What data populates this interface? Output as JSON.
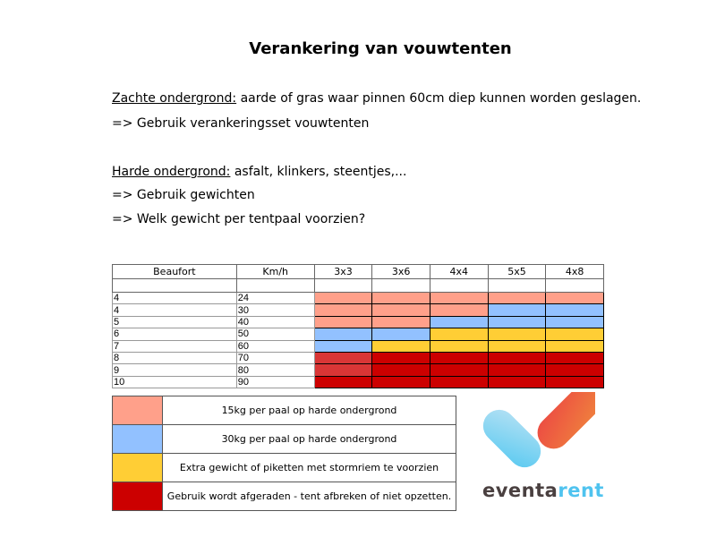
{
  "title": "Verankering van vouwtenten",
  "soft": {
    "label": "Zachte ondergrond:",
    "text": " aarde of gras waar pinnen 60cm diep kunnen worden geslagen.",
    "advice": "=> Gebruik verankeringsset vouwtenten"
  },
  "hard": {
    "label": "Harde ondergrond:",
    "text": " asfalt, klinkers, steentjes,...",
    "advice1": "=> Gebruik gewichten",
    "advice2": "=> Welk gewicht per tentpaal voorzien?"
  },
  "colors": {
    "p": "#ffa08a",
    "b": "#92c1ff",
    "y": "#ffce35",
    "r": "#cc0000",
    "d": "#d93636"
  },
  "table": {
    "headers": [
      "Beaufort",
      "Km/h",
      "3x3",
      "3x6",
      "4x4",
      "5x5",
      "4x8"
    ],
    "rows": [
      {
        "beaufort": "4",
        "kmh": "24",
        "cells": [
          "p",
          "p",
          "p",
          "p",
          "p"
        ]
      },
      {
        "beaufort": "4",
        "kmh": "30",
        "cells": [
          "p",
          "p",
          "p",
          "b",
          "b"
        ]
      },
      {
        "beaufort": "5",
        "kmh": "40",
        "cells": [
          "p",
          "p",
          "b",
          "b",
          "b"
        ]
      },
      {
        "beaufort": "6",
        "kmh": "50",
        "cells": [
          "b",
          "b",
          "y",
          "y",
          "y"
        ]
      },
      {
        "beaufort": "7",
        "kmh": "60",
        "cells": [
          "b",
          "y",
          "y",
          "y",
          "y"
        ]
      },
      {
        "beaufort": "8",
        "kmh": "70",
        "cells": [
          "d",
          "r",
          "r",
          "r",
          "r"
        ]
      },
      {
        "beaufort": "9",
        "kmh": "80",
        "cells": [
          "d",
          "r",
          "r",
          "r",
          "r"
        ]
      },
      {
        "beaufort": "10",
        "kmh": "90",
        "cells": [
          "r",
          "r",
          "r",
          "r",
          "r"
        ]
      }
    ]
  },
  "legend": [
    {
      "color": "p",
      "text": "15kg per paal op harde ondergrond"
    },
    {
      "color": "b",
      "text": "30kg per paal op harde ondergrond"
    },
    {
      "color": "y",
      "text": "Extra gewicht of piketten met stormriem te voorzien"
    },
    {
      "color": "r",
      "text": "Gebruik wordt afgeraden - tent afbreken of niet opzetten."
    }
  ],
  "logo": {
    "part1": "eventa",
    "part2": "rent"
  }
}
